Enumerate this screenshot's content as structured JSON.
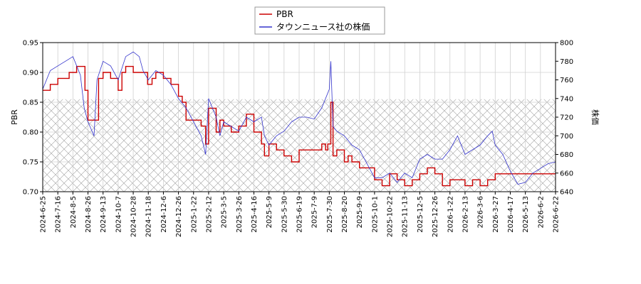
{
  "chart_data": {
    "type": "line",
    "title": "",
    "y_left_label": "PBR",
    "y_right_label": "株価",
    "y_left_lim": [
      0.7,
      0.95
    ],
    "y_right_lim": [
      640,
      800
    ],
    "y_left_ticks": [
      "0.70",
      "0.75",
      "0.80",
      "0.85",
      "0.90",
      "0.95"
    ],
    "y_right_ticks": [
      "640",
      "660",
      "680",
      "700",
      "720",
      "740",
      "760",
      "780",
      "800"
    ],
    "x_ticks": [
      "2024-6-25",
      "2024-7-16",
      "2024-8-5",
      "2024-8-26",
      "2024-9-13",
      "2024-10-7",
      "2024-10-28",
      "2024-11-18",
      "2024-12-6",
      "2024-12-26",
      "2025-1-22",
      "2025-2-12",
      "2025-3-5",
      "2025-3-26",
      "2025-4-16",
      "2025-5-9",
      "2025-5-30",
      "2025-6-19",
      "2025-7-9",
      "2025-7-30",
      "2025-8-20",
      "2025-9-9",
      "2025-10-1",
      "2025-10-22",
      "2025-11-13",
      "2025-12-5",
      "2025-12-26",
      "2026-1-22",
      "2026-2-13",
      "2026-3-6",
      "2026-3-27",
      "2026-4-17",
      "2026-5-13",
      "2026-6-2",
      "2026-6-22"
    ],
    "grid": true,
    "legend_position": "top-center",
    "hatched_band_pbr": [
      0.7,
      0.855
    ],
    "series": [
      {
        "name": "PBR",
        "color": "#cc0000",
        "axis": "left",
        "step": true,
        "points": [
          [
            0,
            0.87
          ],
          [
            1,
            0.88
          ],
          [
            2,
            0.89
          ],
          [
            3.5,
            0.9
          ],
          [
            4.5,
            0.91
          ],
          [
            5.6,
            0.87
          ],
          [
            6,
            0.82
          ],
          [
            7,
            0.82
          ],
          [
            7.4,
            0.89
          ],
          [
            8,
            0.9
          ],
          [
            9,
            0.89
          ],
          [
            10,
            0.87
          ],
          [
            10.5,
            0.9
          ],
          [
            11,
            0.91
          ],
          [
            12,
            0.9
          ],
          [
            13,
            0.9
          ],
          [
            13.9,
            0.88
          ],
          [
            14.5,
            0.89
          ],
          [
            15,
            0.9
          ],
          [
            16,
            0.89
          ],
          [
            17,
            0.88
          ],
          [
            18,
            0.86
          ],
          [
            18.5,
            0.85
          ],
          [
            19,
            0.82
          ],
          [
            20,
            0.82
          ],
          [
            21,
            0.81
          ],
          [
            21.6,
            0.78
          ],
          [
            22,
            0.84
          ],
          [
            23,
            0.8
          ],
          [
            23.5,
            0.82
          ],
          [
            24,
            0.81
          ],
          [
            25,
            0.8
          ],
          [
            26,
            0.81
          ],
          [
            27,
            0.83
          ],
          [
            28,
            0.8
          ],
          [
            29,
            0.78
          ],
          [
            29.4,
            0.76
          ],
          [
            30,
            0.78
          ],
          [
            31,
            0.77
          ],
          [
            32,
            0.76
          ],
          [
            33,
            0.75
          ],
          [
            34,
            0.77
          ],
          [
            35,
            0.77
          ],
          [
            36,
            0.77
          ],
          [
            37,
            0.78
          ],
          [
            37.5,
            0.77
          ],
          [
            37.8,
            0.78
          ],
          [
            38.2,
            0.85
          ],
          [
            38.5,
            0.76
          ],
          [
            39,
            0.77
          ],
          [
            40,
            0.75
          ],
          [
            40.5,
            0.76
          ],
          [
            41,
            0.75
          ],
          [
            42,
            0.74
          ],
          [
            43,
            0.74
          ],
          [
            44,
            0.72
          ],
          [
            45,
            0.71
          ],
          [
            46,
            0.73
          ],
          [
            47,
            0.72
          ],
          [
            48,
            0.71
          ],
          [
            49,
            0.72
          ],
          [
            50,
            0.73
          ],
          [
            51,
            0.74
          ],
          [
            52,
            0.73
          ],
          [
            53,
            0.71
          ],
          [
            54,
            0.72
          ],
          [
            55,
            0.72
          ],
          [
            56,
            0.71
          ],
          [
            57,
            0.72
          ],
          [
            58,
            0.71
          ],
          [
            59,
            0.72
          ],
          [
            60,
            0.73
          ],
          [
            61,
            0.73
          ],
          [
            62,
            0.73
          ],
          [
            63,
            0.73
          ],
          [
            64,
            0.73
          ],
          [
            65,
            0.73
          ],
          [
            66,
            0.73
          ],
          [
            67,
            0.73
          ],
          [
            68,
            0.73
          ]
        ]
      },
      {
        "name": "タウンニュース社の株価",
        "color": "#3333cc",
        "axis": "right",
        "step": false,
        "points": [
          [
            0,
            750
          ],
          [
            1,
            770
          ],
          [
            2,
            775
          ],
          [
            3,
            780
          ],
          [
            4,
            785
          ],
          [
            5,
            765
          ],
          [
            5.5,
            730
          ],
          [
            6,
            715
          ],
          [
            6.8,
            700
          ],
          [
            7.2,
            760
          ],
          [
            8,
            780
          ],
          [
            9,
            775
          ],
          [
            10,
            760
          ],
          [
            11,
            785
          ],
          [
            12,
            790
          ],
          [
            12.8,
            785
          ],
          [
            13.3,
            770
          ],
          [
            14,
            760
          ],
          [
            15,
            770
          ],
          [
            16,
            765
          ],
          [
            17,
            755
          ],
          [
            18,
            740
          ],
          [
            19,
            730
          ],
          [
            20,
            715
          ],
          [
            21,
            700
          ],
          [
            21.6,
            680
          ],
          [
            22,
            740
          ],
          [
            23,
            720
          ],
          [
            23.5,
            700
          ],
          [
            24,
            715
          ],
          [
            25,
            710
          ],
          [
            26,
            705
          ],
          [
            27,
            720
          ],
          [
            28,
            715
          ],
          [
            29,
            720
          ],
          [
            29.4,
            700
          ],
          [
            30,
            690
          ],
          [
            31,
            700
          ],
          [
            32,
            705
          ],
          [
            33,
            715
          ],
          [
            34,
            720
          ],
          [
            35,
            720
          ],
          [
            36,
            718
          ],
          [
            37,
            730
          ],
          [
            38,
            750
          ],
          [
            38.2,
            780
          ],
          [
            38.5,
            710
          ],
          [
            39,
            705
          ],
          [
            40,
            700
          ],
          [
            41,
            690
          ],
          [
            42,
            685
          ],
          [
            43,
            670
          ],
          [
            44,
            655
          ],
          [
            45,
            655
          ],
          [
            46,
            660
          ],
          [
            47,
            650
          ],
          [
            48,
            660
          ],
          [
            49,
            655
          ],
          [
            50,
            675
          ],
          [
            51,
            680
          ],
          [
            52,
            675
          ],
          [
            53,
            675
          ],
          [
            54,
            685
          ],
          [
            55,
            700
          ],
          [
            56,
            680
          ],
          [
            57,
            685
          ],
          [
            58,
            690
          ],
          [
            59,
            700
          ],
          [
            59.6,
            705
          ],
          [
            60,
            690
          ],
          [
            61,
            680
          ],
          [
            62,
            662
          ],
          [
            63,
            648
          ],
          [
            64,
            650
          ],
          [
            65,
            660
          ],
          [
            66,
            665
          ],
          [
            67,
            670
          ],
          [
            68,
            672
          ]
        ]
      }
    ]
  }
}
